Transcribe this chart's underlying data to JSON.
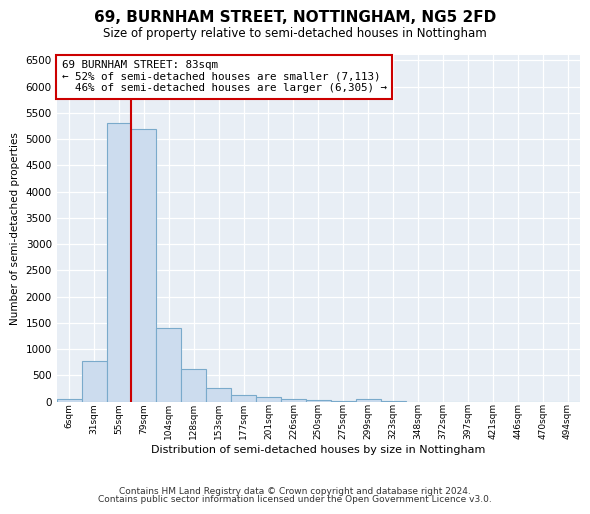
{
  "title": "69, BURNHAM STREET, NOTTINGHAM, NG5 2FD",
  "subtitle": "Size of property relative to semi-detached houses in Nottingham",
  "xlabel": "Distribution of semi-detached houses by size in Nottingham",
  "ylabel": "Number of semi-detached properties",
  "property_label": "69 BURNHAM STREET: 83sqm",
  "pct_smaller": 52,
  "count_smaller": 7113,
  "pct_larger": 46,
  "count_larger": 6305,
  "bin_labels": [
    "6sqm",
    "31sqm",
    "55sqm",
    "79sqm",
    "104sqm",
    "128sqm",
    "153sqm",
    "177sqm",
    "201sqm",
    "226sqm",
    "250sqm",
    "275sqm",
    "299sqm",
    "323sqm",
    "348sqm",
    "372sqm",
    "397sqm",
    "421sqm",
    "446sqm",
    "470sqm",
    "494sqm"
  ],
  "bin_values": [
    50,
    780,
    5300,
    5200,
    1400,
    630,
    260,
    130,
    80,
    50,
    25,
    15,
    60,
    5,
    2,
    1,
    0,
    0,
    0,
    0,
    0
  ],
  "bar_color": "#ccdcee",
  "bar_edge_color": "#7aaacb",
  "vline_bin_index": 3,
  "vline_color": "#cc0000",
  "ylim_max": 6600,
  "yticks": [
    0,
    500,
    1000,
    1500,
    2000,
    2500,
    3000,
    3500,
    4000,
    4500,
    5000,
    5500,
    6000,
    6500
  ],
  "footer_line1": "Contains HM Land Registry data © Crown copyright and database right 2024.",
  "footer_line2": "Contains public sector information licensed under the Open Government Licence v3.0.",
  "fig_bg": "#ffffff",
  "plot_bg": "#e8eef5"
}
